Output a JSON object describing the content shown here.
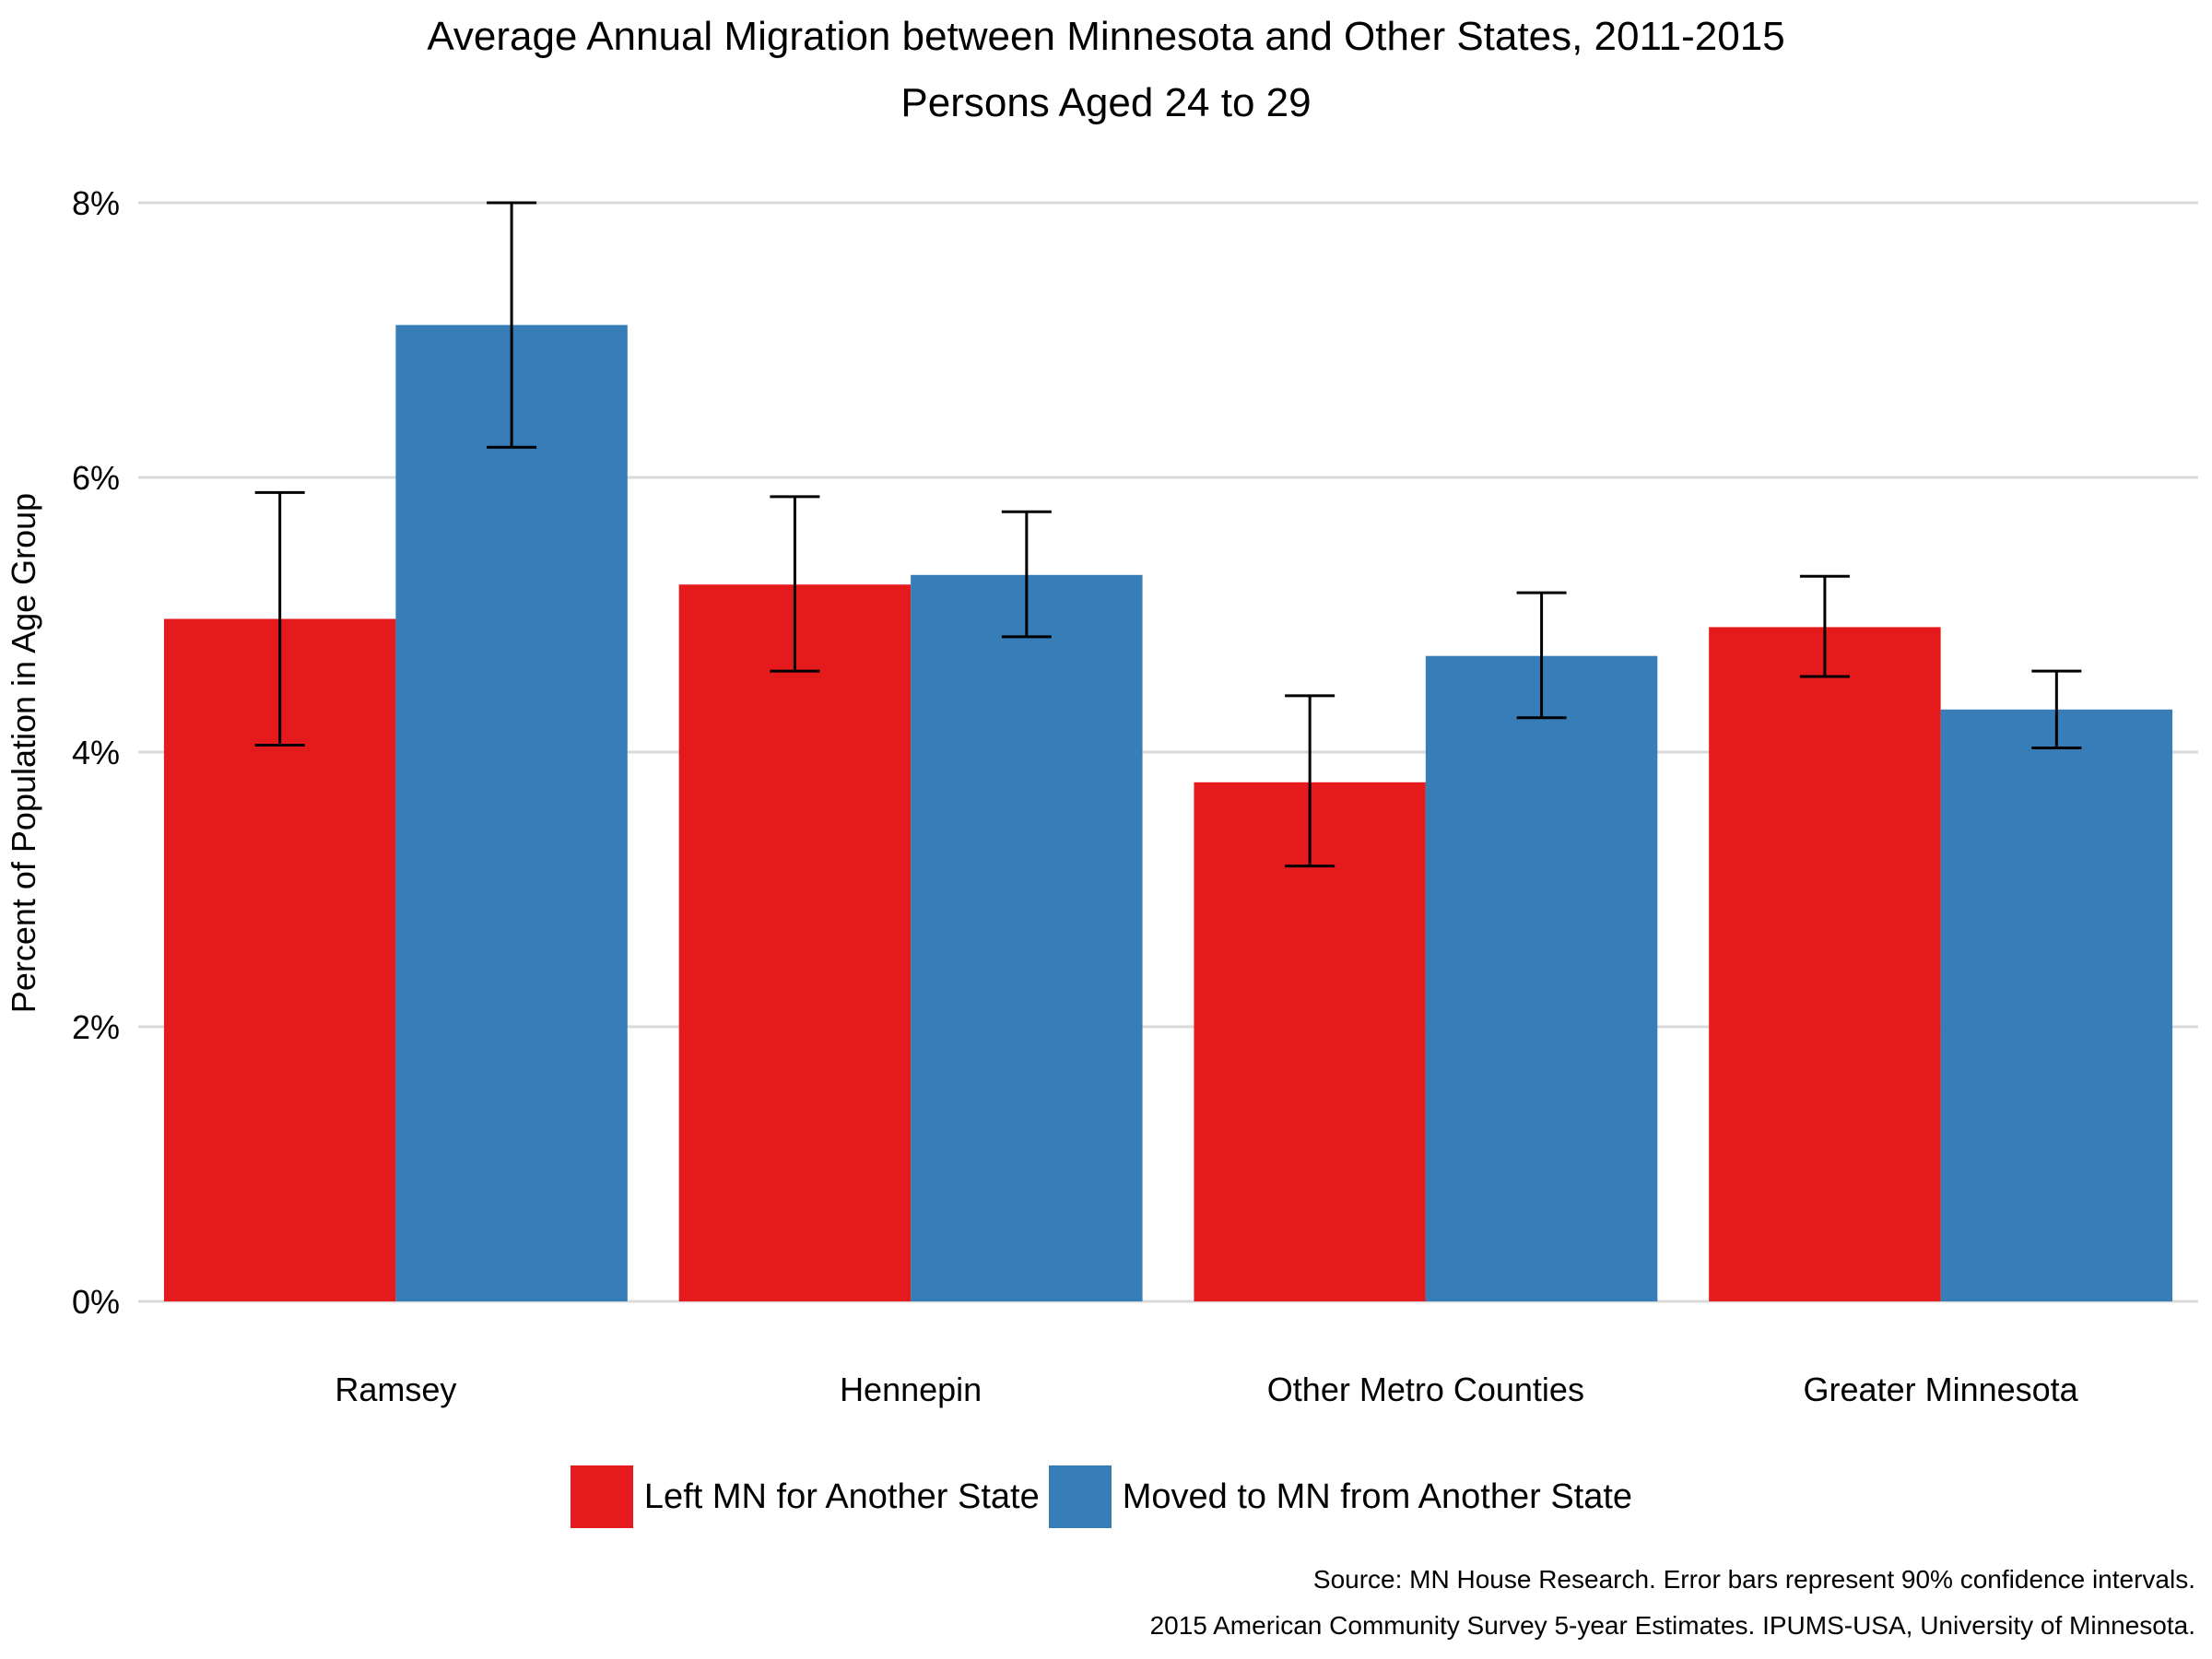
{
  "chart_data": {
    "type": "bar",
    "title": "Average Annual Migration between Minnesota and Other States, 2011-2015",
    "subtitle": "Persons Aged 24 to 29",
    "xlabel": "",
    "ylabel": "Percent of Population in Age Group",
    "ylim": [
      0,
      8
    ],
    "yticks": [
      0,
      2,
      4,
      6,
      8
    ],
    "ytick_labels": [
      "0%",
      "2%",
      "4%",
      "6%",
      "8%"
    ],
    "grid": true,
    "legend_position": "bottom",
    "categories": [
      "Ramsey",
      "Hennepin",
      "Other Metro Counties",
      "Greater Minnesota"
    ],
    "series": [
      {
        "name": "Left MN for Another State",
        "color": "#E41A1C",
        "values": [
          4.97,
          5.22,
          3.78,
          4.91
        ],
        "error_low": [
          4.05,
          4.59,
          3.17,
          4.55
        ],
        "error_high": [
          5.89,
          5.86,
          4.41,
          5.28
        ]
      },
      {
        "name": "Moved to MN from Another State",
        "color": "#377EB8",
        "values": [
          7.11,
          5.29,
          4.7,
          4.31
        ],
        "error_low": [
          6.22,
          4.84,
          4.25,
          4.03
        ],
        "error_high": [
          8.0,
          5.75,
          5.16,
          4.59
        ]
      }
    ],
    "source_lines": [
      "Source: MN House Research. Error bars represent 90% confidence intervals.",
      "2015 American Community Survey 5-year Estimates. IPUMS-USA, University of Minnesota."
    ]
  }
}
